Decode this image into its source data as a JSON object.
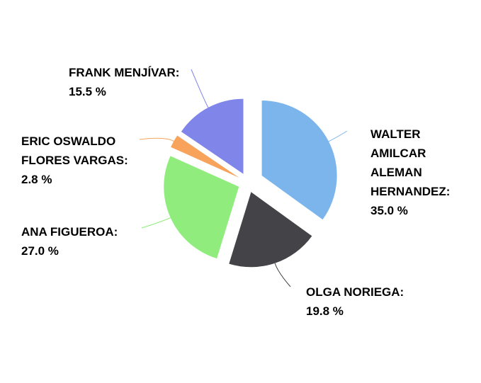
{
  "chart_data": {
    "type": "pie",
    "labels": [
      "WALTER AMILCAR ALEMAN HERNANDEZ: 35.0 %",
      "OLGA NORIEGA: 19.8 %",
      "ANA FIGUEROA: 27.0 %",
      "ERIC OSWALDO FLORES VARGAS: 2.8 %",
      "FRANK MENJÍVAR: 15.5 %"
    ],
    "values": [
      35.0,
      19.8,
      27.0,
      2.8,
      15.5
    ],
    "colors": [
      "#7cb5ec",
      "#434348",
      "#90ed7d",
      "#f7a35c",
      "#8085e9"
    ]
  }
}
